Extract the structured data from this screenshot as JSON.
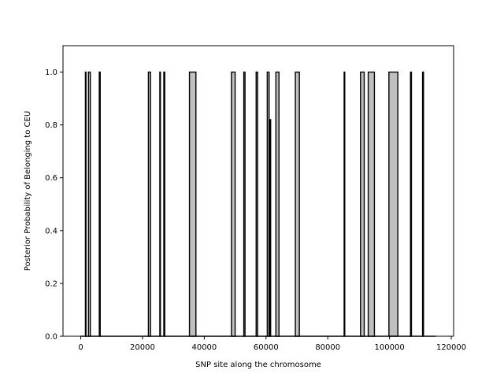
{
  "chart_data": {
    "type": "area",
    "xlabel": "SNP site along the chromosome",
    "ylabel": "Posterior Probability of Belonging to CEU",
    "xlim": [
      -5750,
      120750
    ],
    "ylim": [
      0,
      1.1
    ],
    "xticks": [
      0,
      20000,
      40000,
      60000,
      80000,
      100000,
      120000
    ],
    "xtick_labels": [
      "0",
      "20000",
      "40000",
      "60000",
      "80000",
      "100000",
      "120000"
    ],
    "yticks": [
      0.0,
      0.2,
      0.4,
      0.6,
      0.8,
      1.0
    ],
    "ytick_labels": [
      "0.0",
      "0.2",
      "0.4",
      "0.6",
      "0.8",
      "1.0"
    ],
    "x_end": 115000,
    "grid": false,
    "fill_color": "#bfbfbf",
    "line_color": "#000000",
    "segments": [
      {
        "x0": 1500,
        "x1": 1700,
        "y": 1.0
      },
      {
        "x0": 2500,
        "x1": 3100,
        "y": 1.0
      },
      {
        "x0": 6000,
        "x1": 6300,
        "y": 1.0
      },
      {
        "x0": 21900,
        "x1": 22600,
        "y": 1.0
      },
      {
        "x0": 25600,
        "x1": 25800,
        "y": 1.0
      },
      {
        "x0": 26900,
        "x1": 27200,
        "y": 1.0
      },
      {
        "x0": 35200,
        "x1": 37300,
        "y": 1.0
      },
      {
        "x0": 48800,
        "x1": 50000,
        "y": 1.0
      },
      {
        "x0": 52800,
        "x1": 53200,
        "y": 1.0
      },
      {
        "x0": 56800,
        "x1": 57300,
        "y": 1.0
      },
      {
        "x0": 60400,
        "x1": 61000,
        "y": 1.0
      },
      {
        "x0": 61300,
        "x1": 61500,
        "y": 0.82
      },
      {
        "x0": 63200,
        "x1": 64200,
        "y": 1.0
      },
      {
        "x0": 69500,
        "x1": 70800,
        "y": 1.0
      },
      {
        "x0": 85300,
        "x1": 85500,
        "y": 1.0
      },
      {
        "x0": 90600,
        "x1": 91800,
        "y": 1.0
      },
      {
        "x0": 93100,
        "x1": 95100,
        "y": 1.0
      },
      {
        "x0": 99800,
        "x1": 102700,
        "y": 1.0
      },
      {
        "x0": 106800,
        "x1": 107100,
        "y": 1.0
      },
      {
        "x0": 110700,
        "x1": 111000,
        "y": 1.0
      }
    ]
  }
}
